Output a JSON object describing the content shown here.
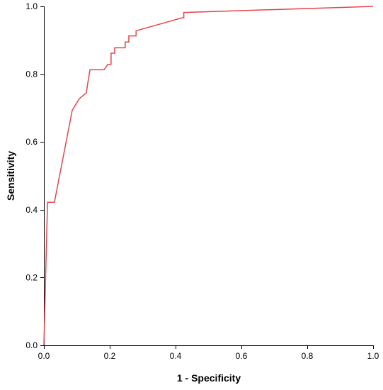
{
  "chart_data": {
    "type": "line",
    "title": "",
    "xlabel": "1 - Specificity",
    "ylabel": "Sensitivity",
    "xlim": [
      0.0,
      1.0
    ],
    "ylim": [
      0.0,
      1.0
    ],
    "x_ticks": [
      "0.0",
      "0.2",
      "0.4",
      "0.6",
      "0.8",
      "1.0"
    ],
    "y_ticks": [
      "0.0",
      "0.2",
      "0.4",
      "0.6",
      "0.8",
      "1.0"
    ],
    "grid": false,
    "legend": false,
    "line_color": "#e8434b",
    "series": [
      {
        "x": [
          0.0,
          0.0,
          0.011,
          0.011,
          0.032,
          0.086,
          0.086,
          0.097,
          0.097,
          0.108,
          0.108,
          0.129,
          0.129,
          0.134,
          0.134,
          0.14,
          0.14,
          0.183,
          0.194,
          0.204,
          0.204,
          0.215,
          0.215,
          0.247,
          0.247,
          0.258,
          0.258,
          0.28,
          0.28,
          0.28,
          0.419,
          0.425,
          0.425,
          1.0
        ],
        "y": [
          0.0,
          0.0,
          0.422,
          0.422,
          0.422,
          0.693,
          0.693,
          0.711,
          0.711,
          0.728,
          0.728,
          0.745,
          0.745,
          0.778,
          0.778,
          0.813,
          0.813,
          0.813,
          0.829,
          0.829,
          0.862,
          0.862,
          0.878,
          0.878,
          0.895,
          0.895,
          0.913,
          0.913,
          0.928,
          0.928,
          0.966,
          0.966,
          0.982,
          1.0
        ]
      }
    ]
  }
}
